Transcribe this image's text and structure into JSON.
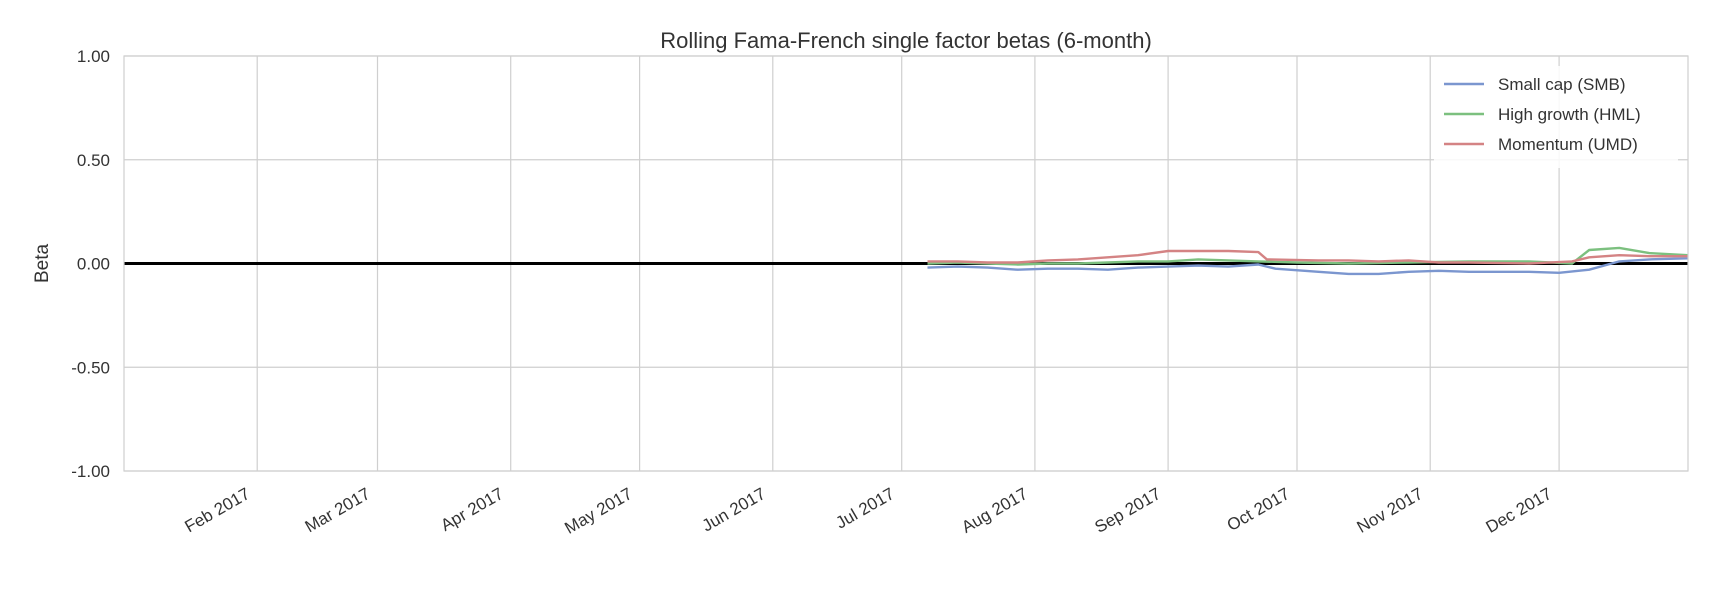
{
  "chart_data": {
    "type": "line",
    "title": "Rolling Fama-French single factor betas (6-month)",
    "xlabel": "",
    "ylabel": "Beta",
    "xlim": [
      "2017-01-01",
      "2017-12-31"
    ],
    "ylim": [
      -1.0,
      1.0
    ],
    "y_ticks": [
      1.0,
      0.5,
      0.0,
      -0.5,
      -1.0
    ],
    "y_tick_labels": [
      "1.00",
      "0.50",
      "0.00",
      "-0.50",
      "-1.00"
    ],
    "x_ticks": [
      "2017-02-01",
      "2017-03-01",
      "2017-04-01",
      "2017-05-01",
      "2017-06-01",
      "2017-07-01",
      "2017-08-01",
      "2017-09-01",
      "2017-10-01",
      "2017-11-01",
      "2017-12-01"
    ],
    "x_tick_labels": [
      "Feb 2017",
      "Mar 2017",
      "Apr 2017",
      "May 2017",
      "Jun 2017",
      "Jul 2017",
      "Aug 2017",
      "Sep 2017",
      "Oct 2017",
      "Nov 2017",
      "Dec 2017"
    ],
    "grid": true,
    "legend_position": "top-right",
    "reference_line": {
      "y": 0.0,
      "color": "#000000"
    },
    "series": [
      {
        "name": "Small cap (SMB)",
        "color": "#7b96cf",
        "points": [
          [
            "2017-07-07",
            -0.02
          ],
          [
            "2017-07-14",
            -0.015
          ],
          [
            "2017-07-21",
            -0.02
          ],
          [
            "2017-07-28",
            -0.03
          ],
          [
            "2017-08-04",
            -0.025
          ],
          [
            "2017-08-11",
            -0.025
          ],
          [
            "2017-08-18",
            -0.03
          ],
          [
            "2017-08-25",
            -0.02
          ],
          [
            "2017-09-01",
            -0.015
          ],
          [
            "2017-09-08",
            -0.01
          ],
          [
            "2017-09-15",
            -0.015
          ],
          [
            "2017-09-22",
            -0.005
          ],
          [
            "2017-09-26",
            -0.025
          ],
          [
            "2017-10-06",
            -0.04
          ],
          [
            "2017-10-13",
            -0.05
          ],
          [
            "2017-10-20",
            -0.05
          ],
          [
            "2017-10-27",
            -0.04
          ],
          [
            "2017-11-03",
            -0.035
          ],
          [
            "2017-11-10",
            -0.04
          ],
          [
            "2017-11-17",
            -0.04
          ],
          [
            "2017-11-24",
            -0.04
          ],
          [
            "2017-12-01",
            -0.045
          ],
          [
            "2017-12-08",
            -0.03
          ],
          [
            "2017-12-15",
            0.01
          ],
          [
            "2017-12-22",
            0.02
          ],
          [
            "2017-12-31",
            0.025
          ]
        ]
      },
      {
        "name": "High growth (HML)",
        "color": "#7cc07f",
        "points": [
          [
            "2017-07-07",
            0.0
          ],
          [
            "2017-07-14",
            0.005
          ],
          [
            "2017-07-21",
            0.0
          ],
          [
            "2017-07-28",
            -0.005
          ],
          [
            "2017-08-04",
            0.0
          ],
          [
            "2017-08-11",
            0.0
          ],
          [
            "2017-08-18",
            0.005
          ],
          [
            "2017-08-25",
            0.01
          ],
          [
            "2017-09-01",
            0.01
          ],
          [
            "2017-09-08",
            0.02
          ],
          [
            "2017-09-15",
            0.015
          ],
          [
            "2017-09-22",
            0.01
          ],
          [
            "2017-10-01",
            0.005
          ],
          [
            "2017-10-13",
            0.0
          ],
          [
            "2017-10-27",
            0.005
          ],
          [
            "2017-11-10",
            0.01
          ],
          [
            "2017-11-24",
            0.01
          ],
          [
            "2017-12-04",
            0.0
          ],
          [
            "2017-12-08",
            0.065
          ],
          [
            "2017-12-15",
            0.075
          ],
          [
            "2017-12-22",
            0.05
          ],
          [
            "2017-12-31",
            0.04
          ]
        ]
      },
      {
        "name": "Momentum (UMD)",
        "color": "#d48384",
        "points": [
          [
            "2017-07-07",
            0.01
          ],
          [
            "2017-07-14",
            0.01
          ],
          [
            "2017-07-21",
            0.005
          ],
          [
            "2017-07-28",
            0.005
          ],
          [
            "2017-08-04",
            0.015
          ],
          [
            "2017-08-11",
            0.02
          ],
          [
            "2017-08-18",
            0.03
          ],
          [
            "2017-08-25",
            0.04
          ],
          [
            "2017-09-01",
            0.06
          ],
          [
            "2017-09-08",
            0.06
          ],
          [
            "2017-09-15",
            0.06
          ],
          [
            "2017-09-22",
            0.055
          ],
          [
            "2017-09-24",
            0.02
          ],
          [
            "2017-10-06",
            0.015
          ],
          [
            "2017-10-13",
            0.015
          ],
          [
            "2017-10-20",
            0.01
          ],
          [
            "2017-10-27",
            0.015
          ],
          [
            "2017-11-03",
            0.005
          ],
          [
            "2017-11-10",
            0.005
          ],
          [
            "2017-11-24",
            0.0
          ],
          [
            "2017-12-04",
            0.01
          ],
          [
            "2017-12-08",
            0.03
          ],
          [
            "2017-12-15",
            0.04
          ],
          [
            "2017-12-22",
            0.035
          ],
          [
            "2017-12-31",
            0.035
          ]
        ]
      }
    ]
  }
}
